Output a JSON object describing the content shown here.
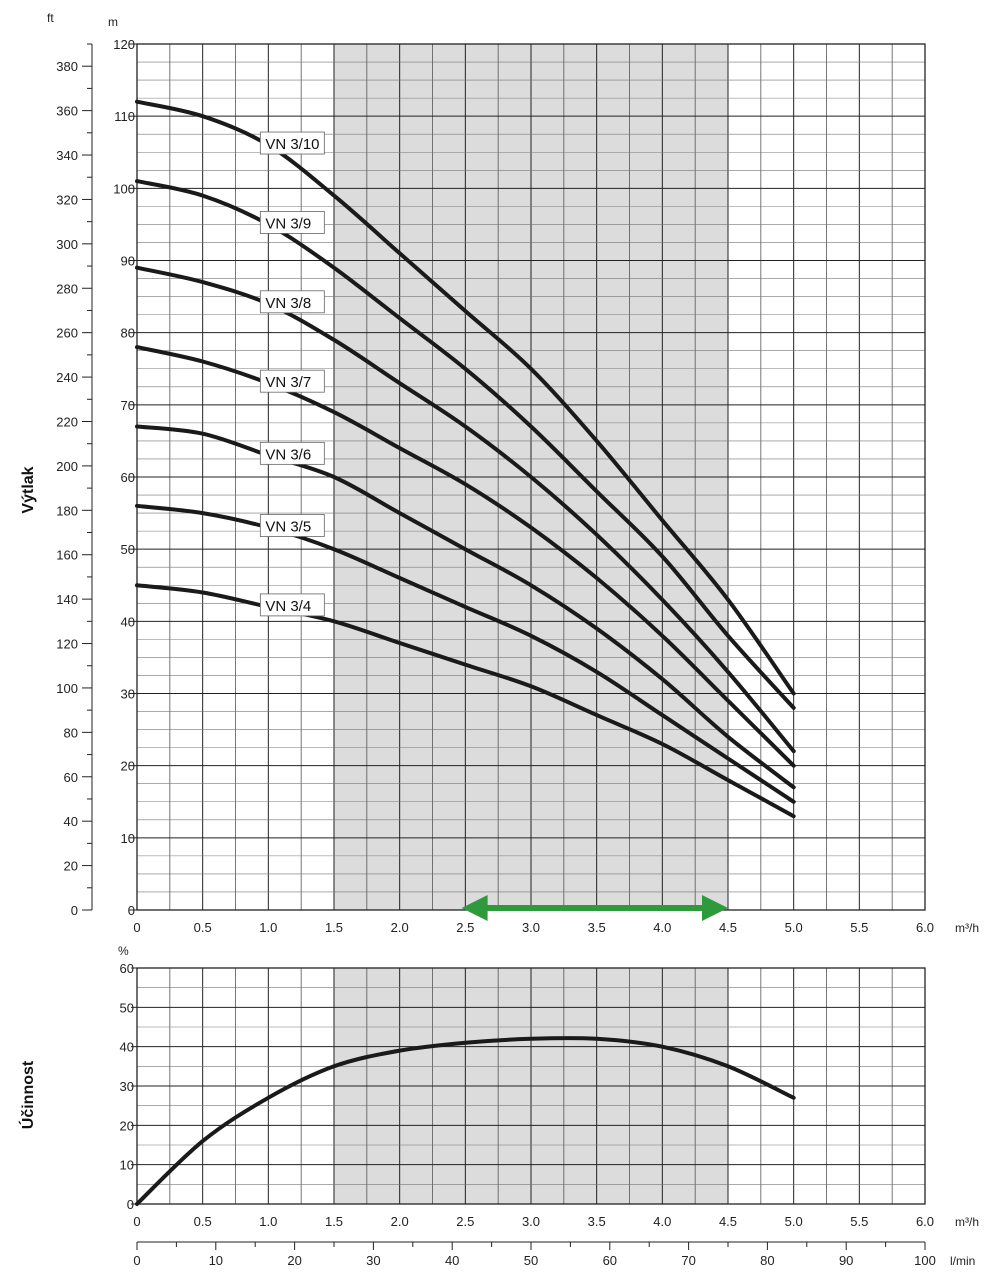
{
  "chart_data": [
    {
      "type": "line",
      "title": "",
      "xlabel": "",
      "x_unit": "m³/h",
      "ylabel": "Výtlak",
      "y_unit_left": "m",
      "y_unit_secondary": "ft",
      "xlim": [
        0,
        6.0
      ],
      "ylim": [
        0,
        120
      ],
      "ylim_ft": [
        0,
        390
      ],
      "x_ticks": [
        "0",
        "0.5",
        "1.0",
        "1.5",
        "2.0",
        "2.5",
        "3.0",
        "3.5",
        "4.0",
        "4.5",
        "5.0",
        "5.5",
        "6.0"
      ],
      "y_ticks": [
        "0",
        "10",
        "20",
        "30",
        "40",
        "50",
        "60",
        "70",
        "80",
        "90",
        "100",
        "110",
        "120"
      ],
      "y_ticks_ft": [
        "0",
        "20",
        "40",
        "60",
        "80",
        "100",
        "120",
        "140",
        "160",
        "180",
        "200",
        "220",
        "240",
        "260",
        "280",
        "300",
        "320",
        "340",
        "360",
        "380"
      ],
      "grid": true,
      "shaded_range": [
        1.5,
        4.5
      ],
      "shade_color": "#dcdcdc",
      "curve_color": "#1a1a1a",
      "annotation": {
        "type": "double-arrow",
        "from": 2.7,
        "to": 4.5,
        "y": 0,
        "color": "#2e9a3c"
      },
      "x": [
        0,
        0.5,
        1.0,
        1.5,
        2.0,
        2.5,
        3.0,
        3.5,
        4.0,
        4.5,
        5.0
      ],
      "series": [
        {
          "name": "VN 3/10",
          "label_x": 1.0,
          "values": [
            112,
            110,
            106,
            99,
            91,
            83,
            75,
            65,
            54,
            43,
            30
          ]
        },
        {
          "name": "VN 3/9",
          "label_x": 1.0,
          "values": [
            101,
            99,
            95,
            89,
            82,
            75,
            67,
            58,
            49,
            38,
            28
          ]
        },
        {
          "name": "VN 3/8",
          "label_x": 1.0,
          "values": [
            89,
            87,
            84,
            79,
            73,
            67,
            60,
            52,
            43,
            33,
            22
          ]
        },
        {
          "name": "VN 3/7",
          "label_x": 1.0,
          "values": [
            78,
            76,
            73,
            69,
            64,
            59,
            53,
            46,
            38,
            29,
            20
          ]
        },
        {
          "name": "VN 3/6",
          "label_x": 1.0,
          "values": [
            67,
            66,
            63,
            60,
            55,
            50,
            45,
            39,
            32,
            24,
            17
          ]
        },
        {
          "name": "VN 3/5",
          "label_x": 1.0,
          "values": [
            56,
            55,
            53,
            50,
            46,
            42,
            38,
            33,
            27,
            21,
            15
          ]
        },
        {
          "name": "VN 3/4",
          "label_x": 1.0,
          "values": [
            45,
            44,
            42,
            40,
            37,
            34,
            31,
            27,
            23,
            18,
            13
          ]
        }
      ]
    },
    {
      "type": "line",
      "title": "",
      "xlabel": "",
      "x_unit": "m³/h",
      "x_unit_secondary": "l/min",
      "ylabel": "Účinnost",
      "y_unit": "%",
      "xlim": [
        0,
        6.0
      ],
      "ylim": [
        0,
        60
      ],
      "x_ticks": [
        "0",
        "0.5",
        "1.0",
        "1.5",
        "2.0",
        "2.5",
        "3.0",
        "3.5",
        "4.0",
        "4.5",
        "5.0",
        "5.5",
        "6.0"
      ],
      "x_ticks_secondary": [
        "0",
        "10",
        "20",
        "30",
        "40",
        "50",
        "60",
        "70",
        "80",
        "90",
        "100"
      ],
      "y_ticks": [
        "0",
        "10",
        "20",
        "30",
        "40",
        "50",
        "60"
      ],
      "grid": true,
      "shaded_range": [
        1.5,
        4.5
      ],
      "x": [
        0,
        0.5,
        1.0,
        1.5,
        2.0,
        2.5,
        3.0,
        3.5,
        4.0,
        4.5,
        5.0
      ],
      "series": [
        {
          "values": [
            0,
            16,
            27,
            35,
            39,
            41,
            42,
            42,
            40,
            35,
            27
          ]
        }
      ]
    }
  ]
}
